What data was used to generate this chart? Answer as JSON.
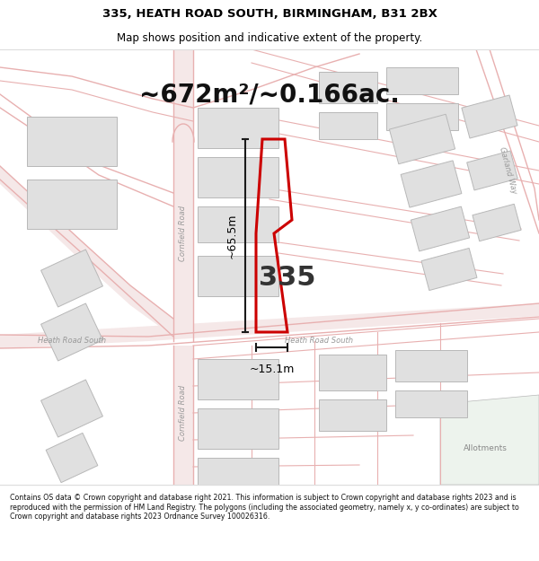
{
  "title_line1": "335, HEATH ROAD SOUTH, BIRMINGHAM, B31 2BX",
  "title_line2": "Map shows position and indicative extent of the property.",
  "area_text": "~672m²/~0.166ac.",
  "dim_width": "~15.1m",
  "dim_height": "~65.5m",
  "property_number": "335",
  "footer_text": "Contains OS data © Crown copyright and database right 2021. This information is subject to Crown copyright and database rights 2023 and is reproduced with the permission of HM Land Registry. The polygons (including the associated geometry, namely x, y co-ordinates) are subject to Crown copyright and database rights 2023 Ordnance Survey 100026316.",
  "map_bg": "#ffffff",
  "road_fill": "#f5e8e8",
  "road_line": "#e8b0b0",
  "road_line_gray": "#c8c8c8",
  "property_color": "#cc0000",
  "building_fill": "#e0e0e0",
  "building_edge": "#b8b8b8",
  "dim_color": "#1a1a1a",
  "road_label_red": "#e08080",
  "road_label_gray": "#999999",
  "allotments_fill": "#edf3ed",
  "title_fontsize": 9.5,
  "subtitle_fontsize": 8.5,
  "area_fontsize": 20,
  "num_fontsize": 22,
  "dim_fontsize": 9,
  "road_label_fontsize": 6
}
